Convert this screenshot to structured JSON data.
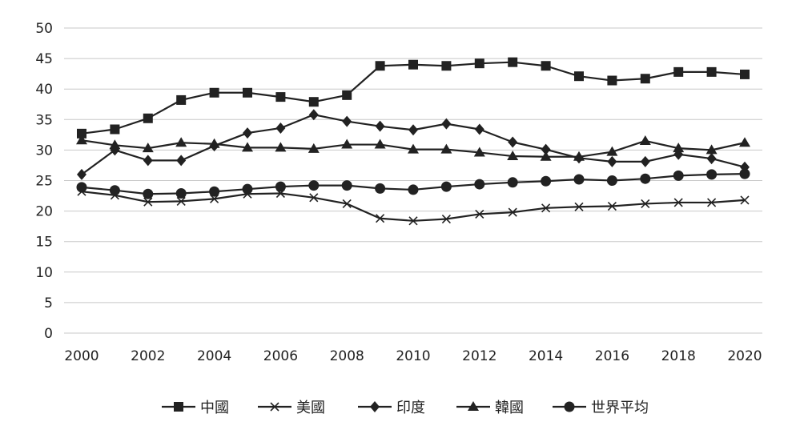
{
  "chart_data": {
    "type": "line",
    "title": "",
    "xlabel": "",
    "ylabel": "",
    "x": [
      2000,
      2001,
      2002,
      2003,
      2004,
      2005,
      2006,
      2007,
      2008,
      2009,
      2010,
      2011,
      2012,
      2013,
      2014,
      2015,
      2016,
      2017,
      2018,
      2019,
      2020
    ],
    "x_tick_labels": [
      "2000",
      "2002",
      "2004",
      "2006",
      "2008",
      "2010",
      "2012",
      "2014",
      "2016",
      "2018",
      "2020"
    ],
    "ylim": [
      0,
      50
    ],
    "y_ticks": [
      0,
      5,
      10,
      15,
      20,
      25,
      30,
      35,
      40,
      45,
      50
    ],
    "grid": "horizontal",
    "legend_position": "bottom",
    "line_color": "#222222",
    "grid_color": "#c8c8c8",
    "series": [
      {
        "name": "中國",
        "marker": "square",
        "values": [
          32.7,
          33.4,
          35.2,
          38.2,
          39.4,
          39.4,
          38.7,
          37.9,
          39.0,
          43.8,
          44.0,
          43.8,
          44.2,
          44.4,
          43.8,
          42.1,
          41.4,
          41.7,
          42.8,
          42.8,
          42.4
        ]
      },
      {
        "name": "美國",
        "marker": "x",
        "values": [
          23.2,
          22.6,
          21.5,
          21.6,
          22.0,
          22.8,
          22.9,
          22.2,
          21.2,
          18.8,
          18.4,
          18.7,
          19.5,
          19.8,
          20.5,
          20.7,
          20.8,
          21.2,
          21.4,
          21.4,
          21.8
        ]
      },
      {
        "name": "印度",
        "marker": "diamond",
        "values": [
          26.0,
          30.0,
          28.3,
          28.3,
          30.7,
          32.8,
          33.6,
          35.8,
          34.7,
          33.9,
          33.3,
          34.3,
          33.4,
          31.3,
          30.1,
          28.7,
          28.1,
          28.1,
          29.3,
          28.6,
          27.2
        ]
      },
      {
        "name": "韓國",
        "marker": "triangle",
        "values": [
          31.6,
          30.8,
          30.3,
          31.2,
          31.0,
          30.4,
          30.4,
          30.2,
          30.9,
          30.9,
          30.1,
          30.1,
          29.6,
          29.0,
          28.9,
          28.9,
          29.7,
          31.5,
          30.3,
          30.0,
          31.2
        ]
      },
      {
        "name": "世界平均",
        "marker": "circle",
        "values": [
          23.9,
          23.4,
          22.8,
          22.9,
          23.2,
          23.6,
          24.0,
          24.2,
          24.2,
          23.7,
          23.5,
          24.0,
          24.4,
          24.7,
          24.9,
          25.2,
          25.0,
          25.3,
          25.8,
          26.0,
          26.1
        ]
      }
    ]
  }
}
